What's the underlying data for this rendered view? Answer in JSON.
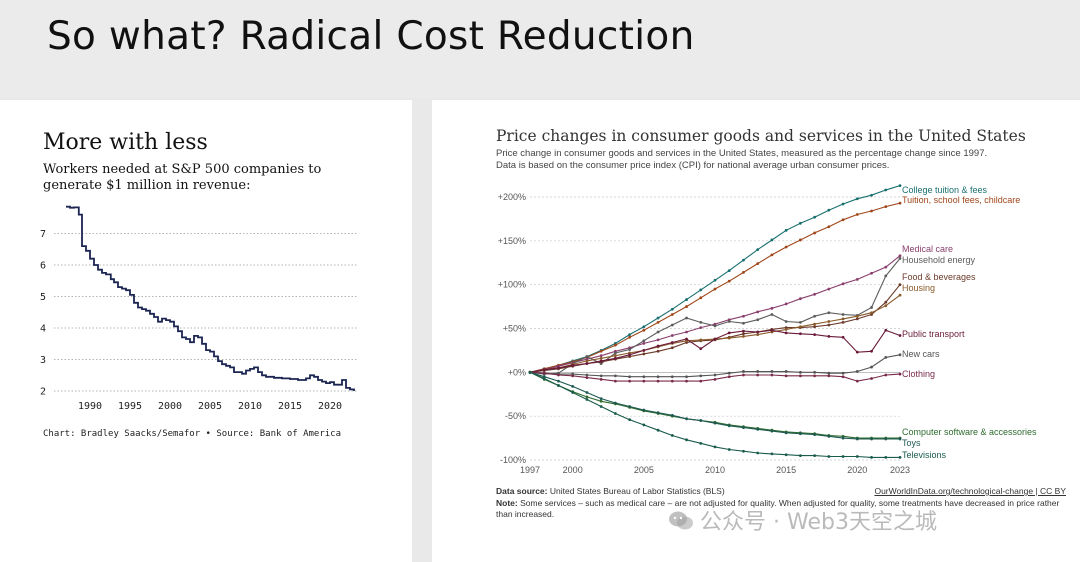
{
  "slide": {
    "title": "So what?  Radical Cost Reduction"
  },
  "left_chart": {
    "title": "More with less",
    "subtitle": "Workers needed at S&P 500 companies to generate $1 million in revenue:",
    "credit": "Chart: Bradley Saacks/Semafor • Source: Bank of America"
  },
  "right_chart": {
    "title": "Price changes in consumer goods and services in the United States",
    "subtitle": "Price change in consumer goods and services in the United States, measured as the percentage change since 1997. Data is based on the consumer price index (CPI) for national average urban consumer prices.",
    "source_label": "Data source:",
    "source_text": "United States Bureau of Labor Statistics (BLS)",
    "link_text": "OurWorldInData.org/technological-change",
    "license": "CC BY",
    "link_separator": " | ",
    "note_label": "Note:",
    "note_text": "Some services – such as medical care – are not adjusted for quality. When adjusted for quality, some treatments have decreased in price rather than increased."
  },
  "watermark": {
    "text": "公众号 · Web3天空之城"
  },
  "chart_data": [
    {
      "type": "line",
      "title": "More with less",
      "subtitle": "Workers needed at S&P 500 companies to generate $1 million in revenue:",
      "xlabel": "",
      "ylabel": "",
      "xlim": [
        1986,
        2023.5
      ],
      "ylim": [
        2,
        8
      ],
      "x_ticks": [
        1990,
        1995,
        2000,
        2005,
        2010,
        2015,
        2020
      ],
      "y_ticks": [
        2,
        3,
        4,
        5,
        6,
        7
      ],
      "grid": "horizontal-dotted",
      "color": "#1b2552",
      "series": [
        {
          "name": "Workers per $1M revenue",
          "points": [
            [
              1987,
              7.85
            ],
            [
              1987.5,
              7.82
            ],
            [
              1988,
              7.83
            ],
            [
              1988.6,
              7.6
            ],
            [
              1989,
              6.6
            ],
            [
              1989.5,
              6.45
            ],
            [
              1990,
              6.2
            ],
            [
              1990.5,
              6.0
            ],
            [
              1991,
              5.85
            ],
            [
              1991.5,
              5.75
            ],
            [
              1992,
              5.7
            ],
            [
              1992.6,
              5.55
            ],
            [
              1993,
              5.45
            ],
            [
              1993.5,
              5.3
            ],
            [
              1994,
              5.25
            ],
            [
              1994.5,
              5.2
            ],
            [
              1995,
              5.05
            ],
            [
              1995.5,
              4.8
            ],
            [
              1996,
              4.65
            ],
            [
              1996.5,
              4.6
            ],
            [
              1997,
              4.55
            ],
            [
              1997.5,
              4.45
            ],
            [
              1998,
              4.35
            ],
            [
              1998.5,
              4.2
            ],
            [
              1999,
              4.3
            ],
            [
              1999.5,
              4.25
            ],
            [
              2000,
              4.2
            ],
            [
              2000.5,
              4.05
            ],
            [
              2001,
              3.9
            ],
            [
              2001.5,
              3.7
            ],
            [
              2002,
              3.65
            ],
            [
              2002.5,
              3.55
            ],
            [
              2003,
              3.75
            ],
            [
              2003.5,
              3.7
            ],
            [
              2004,
              3.5
            ],
            [
              2004.5,
              3.3
            ],
            [
              2005,
              3.25
            ],
            [
              2005.5,
              3.1
            ],
            [
              2006,
              2.95
            ],
            [
              2006.5,
              2.85
            ],
            [
              2007,
              2.8
            ],
            [
              2007.5,
              2.75
            ],
            [
              2008,
              2.6
            ],
            [
              2008.5,
              2.6
            ],
            [
              2009,
              2.55
            ],
            [
              2009.5,
              2.65
            ],
            [
              2010,
              2.7
            ],
            [
              2010.5,
              2.75
            ],
            [
              2011,
              2.6
            ],
            [
              2011.5,
              2.5
            ],
            [
              2012,
              2.45
            ],
            [
              2013,
              2.42
            ],
            [
              2014,
              2.4
            ],
            [
              2015,
              2.38
            ],
            [
              2016,
              2.35
            ],
            [
              2017,
              2.4
            ],
            [
              2017.5,
              2.5
            ],
            [
              2018,
              2.45
            ],
            [
              2018.5,
              2.35
            ],
            [
              2019,
              2.3
            ],
            [
              2019.5,
              2.25
            ],
            [
              2020,
              2.28
            ],
            [
              2020.5,
              2.2
            ],
            [
              2021,
              2.2
            ],
            [
              2021.5,
              2.35
            ],
            [
              2022,
              2.1
            ],
            [
              2022.5,
              2.05
            ],
            [
              2023,
              2.0
            ]
          ]
        }
      ],
      "credit": "Chart: Bradley Saacks/Semafor • Source: Bank of America"
    },
    {
      "type": "line",
      "title": "Price changes in consumer goods and services in the United States",
      "xlabel": "",
      "ylabel": "",
      "xlim": [
        1997,
        2023
      ],
      "ylim": [
        -100,
        200
      ],
      "x_ticks": [
        1997,
        2000,
        2005,
        2010,
        2015,
        2020,
        2023
      ],
      "y_ticks": [
        -100,
        -50,
        0,
        50,
        100,
        150,
        200
      ],
      "y_tick_labels": [
        "-100%",
        "-50%",
        "+0%",
        "+50%",
        "+100%",
        "+150%",
        "+200%"
      ],
      "grid": "horizontal-dotted",
      "x": [
        1997,
        1998,
        1999,
        2000,
        2001,
        2002,
        2003,
        2004,
        2005,
        2006,
        2007,
        2008,
        2009,
        2010,
        2011,
        2012,
        2013,
        2014,
        2015,
        2016,
        2017,
        2018,
        2019,
        2020,
        2021,
        2022,
        2023
      ],
      "series": [
        {
          "name": "College tuition & fees",
          "color": "#1a6f6f",
          "values": [
            0,
            4,
            8,
            13,
            18,
            25,
            33,
            43,
            52,
            62,
            72,
            83,
            94,
            105,
            116,
            128,
            140,
            151,
            162,
            170,
            177,
            185,
            192,
            198,
            202,
            208,
            213
          ]
        },
        {
          "name": "Tuition, school fees, childcare",
          "color": "#a0461a",
          "values": [
            0,
            4,
            8,
            12,
            17,
            24,
            31,
            40,
            48,
            57,
            66,
            75,
            85,
            95,
            104,
            114,
            124,
            134,
            143,
            151,
            159,
            166,
            174,
            180,
            184,
            189,
            193
          ]
        },
        {
          "name": "Medical care",
          "color": "#8a3f6e",
          "values": [
            0,
            3,
            7,
            11,
            15,
            19,
            24,
            28,
            33,
            37,
            42,
            46,
            51,
            55,
            60,
            64,
            69,
            73,
            78,
            84,
            89,
            95,
            101,
            106,
            113,
            120,
            133
          ]
        },
        {
          "name": "Household energy",
          "color": "#5c5c5c",
          "values": [
            0,
            -2,
            -1,
            10,
            18,
            10,
            22,
            26,
            36,
            46,
            54,
            62,
            57,
            53,
            58,
            56,
            60,
            66,
            58,
            57,
            64,
            68,
            66,
            65,
            74,
            110,
            130
          ]
        },
        {
          "name": "Food & beverages",
          "color": "#6a3a2a",
          "values": [
            0,
            2,
            4,
            7,
            10,
            12,
            15,
            18,
            21,
            24,
            28,
            34,
            36,
            37,
            40,
            44,
            46,
            49,
            51,
            51,
            52,
            54,
            57,
            61,
            66,
            80,
            100
          ]
        },
        {
          "name": "Housing",
          "color": "#8a5a2a",
          "values": [
            0,
            3,
            5,
            9,
            13,
            16,
            19,
            22,
            25,
            29,
            33,
            36,
            37,
            38,
            39,
            41,
            43,
            46,
            49,
            52,
            55,
            58,
            61,
            64,
            68,
            76,
            88
          ]
        },
        {
          "name": "Public transport",
          "color": "#6a1a3a",
          "values": [
            0,
            3,
            5,
            8,
            10,
            13,
            16,
            20,
            25,
            30,
            34,
            38,
            27,
            38,
            45,
            47,
            46,
            48,
            45,
            44,
            43,
            41,
            40,
            23,
            24,
            48,
            42
          ]
        },
        {
          "name": "New cars",
          "color": "#555555",
          "values": [
            0,
            -1,
            -2,
            -2,
            -3,
            -4,
            -4,
            -5,
            -5,
            -5,
            -5,
            -5,
            -4,
            -3,
            -1,
            1,
            1,
            1,
            1,
            0,
            0,
            -1,
            -1,
            1,
            6,
            17,
            20
          ]
        },
        {
          "name": "Clothing",
          "color": "#7a2a4a",
          "values": [
            0,
            -1,
            -3,
            -4,
            -6,
            -8,
            -10,
            -10,
            -10,
            -10,
            -10,
            -10,
            -10,
            -8,
            -5,
            -3,
            -3,
            -3,
            -4,
            -4,
            -4,
            -4,
            -5,
            -10,
            -7,
            -3,
            -2
          ]
        },
        {
          "name": "Computer software & accessories",
          "color": "#2f6b2f",
          "values": [
            0,
            -8,
            -15,
            -22,
            -28,
            -33,
            -36,
            -40,
            -44,
            -47,
            -50,
            -53,
            -55,
            -57,
            -60,
            -62,
            -64,
            -66,
            -68,
            -69,
            -70,
            -72,
            -73,
            -75,
            -75,
            -75,
            -75
          ]
        },
        {
          "name": "Toys",
          "color": "#1f5a52",
          "values": [
            0,
            -5,
            -10,
            -16,
            -23,
            -30,
            -35,
            -39,
            -43,
            -46,
            -49,
            -53,
            -55,
            -58,
            -61,
            -63,
            -65,
            -67,
            -69,
            -70,
            -71,
            -73,
            -75,
            -76,
            -76,
            -76,
            -76
          ]
        },
        {
          "name": "Televisions",
          "color": "#1a5c4c",
          "values": [
            0,
            -7,
            -15,
            -23,
            -31,
            -39,
            -47,
            -54,
            -60,
            -66,
            -72,
            -77,
            -81,
            -85,
            -88,
            -90,
            -92,
            -93,
            -94,
            -95,
            -95,
            -96,
            -96,
            -96,
            -97,
            -97,
            -97
          ]
        }
      ],
      "end_labels": [
        "College tuition & fees",
        "Tuition, school fees, childcare",
        "Medical care",
        "Household energy",
        "Food & beverages",
        "Housing",
        "Public transport",
        "New cars",
        "Clothing",
        "Computer software & accessories",
        "Toys",
        "Televisions"
      ],
      "source": "United States Bureau of Labor Statistics (BLS)"
    }
  ]
}
